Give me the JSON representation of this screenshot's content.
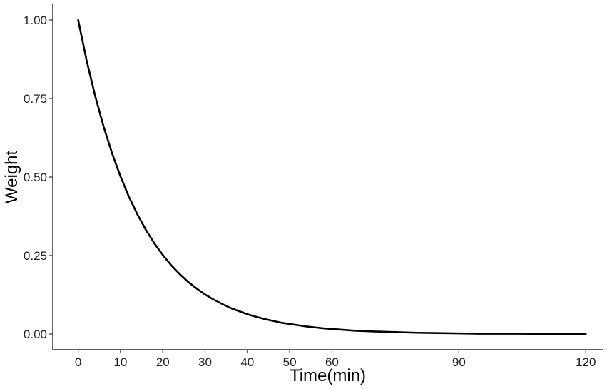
{
  "chart_data": {
    "type": "line",
    "title": "",
    "xlabel": "Time(min)",
    "ylabel": "Weight",
    "xlim": [
      -6,
      124
    ],
    "ylim": [
      -0.05,
      1.05
    ],
    "x_ticks": [
      0,
      10,
      20,
      30,
      40,
      50,
      60,
      90,
      120
    ],
    "x_tick_labels": [
      "0",
      "10",
      "20",
      "30",
      "40",
      "50",
      "60",
      "90",
      "120"
    ],
    "y_ticks": [
      0,
      0.25,
      0.5,
      0.75,
      1.0
    ],
    "y_tick_labels": [
      "0.00",
      "0.25",
      "0.50",
      "0.75",
      "1.00"
    ],
    "grid": false,
    "legend": "none",
    "series": [
      {
        "color": "#000000",
        "x": [
          0,
          2,
          4,
          6,
          8,
          10,
          12,
          14,
          16,
          18,
          20,
          22,
          24,
          26,
          28,
          30,
          32,
          34,
          36,
          38,
          40,
          42,
          44,
          46,
          48,
          50,
          52,
          54,
          56,
          58,
          60,
          65,
          70,
          75,
          80,
          85,
          90,
          95,
          100,
          105,
          110,
          115,
          120
        ],
        "y": [
          1.0,
          0.871,
          0.759,
          0.661,
          0.576,
          0.502,
          0.437,
          0.381,
          0.332,
          0.289,
          0.252,
          0.219,
          0.191,
          0.166,
          0.145,
          0.126,
          0.11,
          0.096,
          0.083,
          0.073,
          0.063,
          0.055,
          0.048,
          0.042,
          0.036,
          0.032,
          0.028,
          0.024,
          0.021,
          0.018,
          0.016,
          0.011,
          0.008,
          0.006,
          0.004,
          0.003,
          0.002,
          0.001,
          0.001,
          0.001,
          0.0,
          0.0,
          0.0
        ]
      }
    ]
  }
}
